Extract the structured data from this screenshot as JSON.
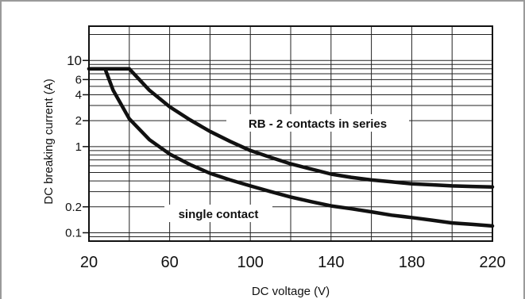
{
  "chart_data": {
    "type": "line",
    "xlabel": "DC voltage (V)",
    "ylabel": "DC breaking current (A)",
    "xlim": [
      20,
      220
    ],
    "ylim": [
      0.08,
      25
    ],
    "y_scale": "log",
    "grid": true,
    "x_ticks": [
      20,
      60,
      100,
      140,
      180,
      220
    ],
    "x_tick_labels": [
      "20",
      "60",
      "100",
      "140",
      "180",
      "220"
    ],
    "y_ticks": [
      10,
      6,
      4,
      2,
      1,
      0.2,
      0.1
    ],
    "y_tick_labels": [
      "10",
      "6",
      "4",
      "2",
      "1",
      "0.2",
      "0.1"
    ],
    "series": [
      {
        "name": "RB - 2 contacts in series",
        "x": [
          20,
          40,
          50,
          60,
          70,
          80,
          90,
          100,
          110,
          120,
          130,
          140,
          150,
          160,
          170,
          180,
          190,
          200,
          210,
          220
        ],
        "y": [
          8,
          8,
          4.5,
          2.9,
          2.05,
          1.5,
          1.15,
          0.9,
          0.75,
          0.63,
          0.55,
          0.48,
          0.44,
          0.41,
          0.39,
          0.37,
          0.36,
          0.35,
          0.345,
          0.34
        ]
      },
      {
        "name": "single contact",
        "x": [
          20,
          28,
          32,
          40,
          50,
          60,
          70,
          80,
          90,
          100,
          110,
          120,
          130,
          140,
          150,
          160,
          170,
          180,
          190,
          200,
          210,
          220
        ],
        "y": [
          8,
          8,
          4.5,
          2.1,
          1.2,
          0.82,
          0.62,
          0.49,
          0.41,
          0.35,
          0.3,
          0.26,
          0.23,
          0.205,
          0.19,
          0.175,
          0.16,
          0.15,
          0.14,
          0.13,
          0.125,
          0.12
        ]
      }
    ]
  }
}
